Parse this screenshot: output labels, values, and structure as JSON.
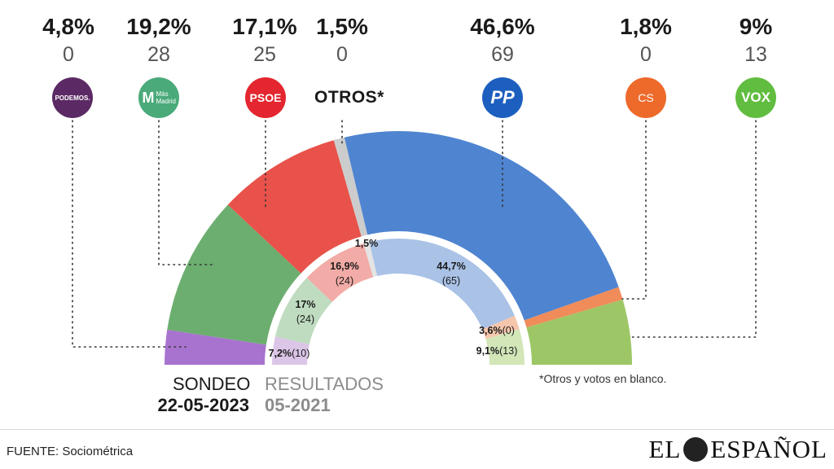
{
  "parties": [
    {
      "id": "podemos",
      "pct": "4,8%",
      "seats": "0",
      "logo_text": "PODEMOS.",
      "color": "#5b2a64"
    },
    {
      "id": "mas-madrid",
      "pct": "19,2%",
      "seats": "28",
      "logo_text": "Más Madrid",
      "color": "#4aaa7a"
    },
    {
      "id": "psoe",
      "pct": "17,1%",
      "seats": "25",
      "logo_text": "PSOE",
      "color": "#e3262f"
    },
    {
      "id": "otros",
      "pct": "1,5%",
      "seats": "0",
      "label": "OTROS*",
      "color": "#c8c8c8"
    },
    {
      "id": "pp",
      "pct": "46,6%",
      "seats": "69",
      "logo_text": "PP",
      "color": "#1d5fbf"
    },
    {
      "id": "cs",
      "pct": "1,8%",
      "seats": "0",
      "logo_text": "CS",
      "color": "#ee6a2b"
    },
    {
      "id": "vox",
      "pct": "9%",
      "seats": "13",
      "logo_text": "VOX",
      "color": "#61bd3f"
    }
  ],
  "inner_labels": [
    {
      "pct": "7,2%",
      "seats": "(10)"
    },
    {
      "pct": "17%",
      "seats": "(24)"
    },
    {
      "pct": "16,9%",
      "seats": "(24)"
    },
    {
      "pct": "1,5%",
      "seats": ""
    },
    {
      "pct": "44,7%",
      "seats": "(65)"
    },
    {
      "pct": "3,6%",
      "seats": "(0)"
    },
    {
      "pct": "9,1%",
      "seats": "(13)"
    }
  ],
  "captions": {
    "sondeo": "SONDEO",
    "sondeo_date": "22-05-2023",
    "resultados": "RESULTADOS",
    "resultados_date": "05-2021"
  },
  "note": "*Otros y votos en blanco.",
  "source": "FUENTE: Sociométrica",
  "brand": {
    "left": "EL",
    "right": "ESPAÑOL"
  },
  "chart_data": {
    "type": "pie",
    "categories": [
      "Podemos",
      "Más Madrid",
      "PSOE",
      "Otros*",
      "PP",
      "Cs",
      "Vox"
    ],
    "series": [
      {
        "name": "SONDEO 22-05-2023",
        "values": [
          4.8,
          19.2,
          17.1,
          1.5,
          46.6,
          1.8,
          9.0
        ],
        "seats": [
          0,
          28,
          25,
          0,
          69,
          0,
          13
        ]
      },
      {
        "name": "RESULTADOS 05-2021",
        "values": [
          7.2,
          17.0,
          16.9,
          1.5,
          44.7,
          3.6,
          9.1
        ],
        "seats": [
          10,
          24,
          24,
          0,
          65,
          0,
          13
        ]
      }
    ],
    "outer_colors": [
      "#a873cf",
      "#6cae6f",
      "#e8524a",
      "#cccccc",
      "#4f84d0",
      "#ef8c5a",
      "#9dc766"
    ],
    "inner_colors": [
      "#dcc6e8",
      "#bfdcc0",
      "#f2aba6",
      "#e4e4e4",
      "#a9c2e6",
      "#f6c6ac",
      "#d2e6b8"
    ]
  }
}
